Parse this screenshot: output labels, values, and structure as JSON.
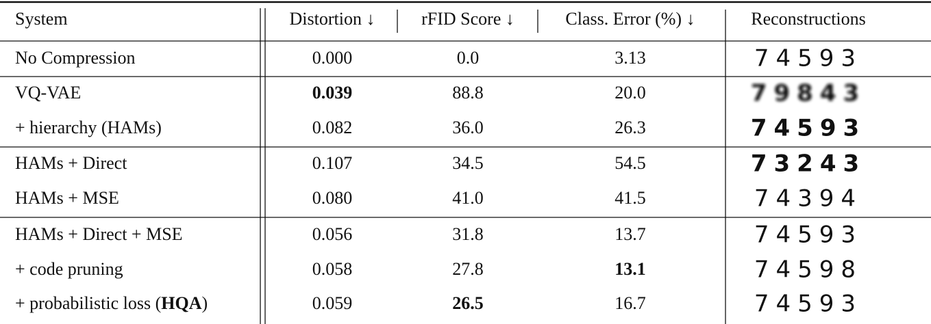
{
  "table": {
    "header": [
      "System",
      "Distortion ↓",
      "rFID Score ↓",
      "Class. Error (%) ↓",
      "Reconstructions"
    ],
    "rows": [
      [
        "No Compression",
        "0.000",
        "0.0",
        "3.13",
        {
          "text": "74593"
        }
      ],
      [
        "VQ-VAE",
        {
          "text": "0.039",
          "bold": true
        },
        "88.8",
        "20.0",
        {
          "text": "79843",
          "blur": true
        }
      ],
      [
        "+ hierarchy (HAMs)",
        "0.082",
        "36.0",
        "26.3",
        {
          "text": "74593",
          "bold": true
        }
      ],
      [
        "HAMs + Direct",
        "0.107",
        "34.5",
        "54.5",
        {
          "text": "73243",
          "bold": true
        }
      ],
      [
        "HAMs + MSE",
        "0.080",
        "41.0",
        "41.5",
        {
          "text": "74394"
        }
      ],
      [
        "HAMs + Direct + MSE",
        "0.056",
        "31.8",
        "13.7",
        {
          "text": "74593"
        }
      ],
      [
        "+ code pruning",
        "0.058",
        "27.8",
        {
          "text": "13.1",
          "bold": true
        },
        {
          "text": "74598"
        }
      ],
      [
        {
          "parts": [
            {
              "text": "+ probabilistic loss ("
            },
            {
              "text": "HQA",
              "bold": true
            },
            {
              "text": ")"
            }
          ]
        },
        "0.059",
        {
          "text": "26.5",
          "bold": true
        },
        "16.7",
        {
          "text": "74593"
        }
      ]
    ]
  }
}
